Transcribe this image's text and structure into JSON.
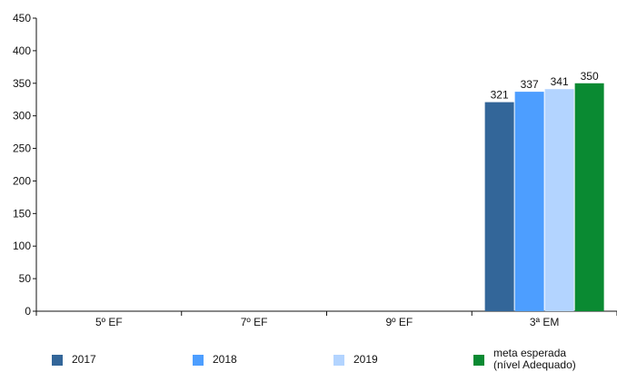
{
  "chart_data": {
    "type": "bar",
    "categories": [
      "5º EF",
      "7º EF",
      "9º EF",
      "3ª EM"
    ],
    "series": [
      {
        "name": "2017",
        "color": "#336699",
        "values": [
          null,
          null,
          null,
          321
        ]
      },
      {
        "name": "2018",
        "color": "#4d9eff",
        "values": [
          null,
          null,
          null,
          337
        ]
      },
      {
        "name": "2019",
        "color": "#b3d4ff",
        "values": [
          null,
          null,
          null,
          341
        ]
      },
      {
        "name": "meta esperada\n(nível Adequado)",
        "color": "#0a8a32",
        "values": [
          null,
          null,
          null,
          350
        ]
      }
    ],
    "ylim": [
      0,
      450
    ],
    "yticks": [
      0,
      50,
      100,
      150,
      200,
      250,
      300,
      350,
      400,
      450
    ],
    "grid": false,
    "legend_position": "bottom",
    "title": "",
    "xlabel": "",
    "ylabel": ""
  }
}
